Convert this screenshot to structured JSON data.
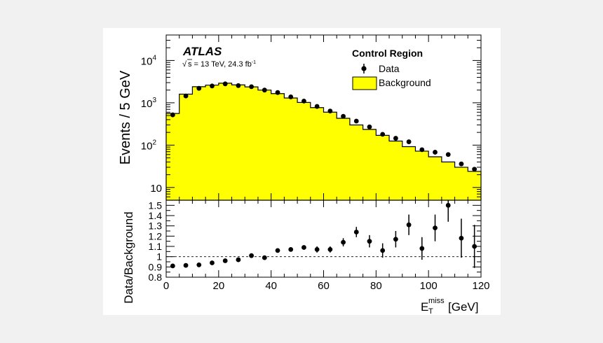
{
  "chart_data": [
    {
      "type": "histogram",
      "panel": "main",
      "ylabel": "Events / 5 GeV",
      "yscale": "log",
      "ylim": [
        5,
        40000
      ],
      "xlim": [
        0,
        120
      ],
      "bin_width": 5,
      "y_ticks": [
        {
          "value": 10,
          "base": "10",
          "exp": ""
        },
        {
          "value": 100,
          "base": "10",
          "exp": "2"
        },
        {
          "value": 1000,
          "base": "10",
          "exp": "3"
        },
        {
          "value": 10000,
          "base": "10",
          "exp": "4"
        }
      ],
      "experiment": "ATLAS",
      "energy_label": "s = 13 TeV, 24.3 fb",
      "energy_label_exp": "-1",
      "legend_title": "Control Region",
      "legend_position": "top-right",
      "series": [
        {
          "name": "Data",
          "style": "points",
          "x": [
            2.5,
            7.5,
            12.5,
            17.5,
            22.5,
            27.5,
            32.5,
            37.5,
            42.5,
            47.5,
            52.5,
            57.5,
            62.5,
            67.5,
            72.5,
            77.5,
            82.5,
            87.5,
            92.5,
            97.5,
            102.5,
            107.5,
            112.5,
            117.5
          ],
          "values": [
            520,
            1450,
            2200,
            2500,
            2800,
            2550,
            2400,
            2000,
            1750,
            1380,
            1100,
            820,
            640,
            480,
            370,
            270,
            180,
            145,
            120,
            78,
            68,
            60,
            36,
            27
          ]
        },
        {
          "name": "Background",
          "style": "filled-step",
          "color": "#ffff00",
          "values": [
            560,
            1600,
            2400,
            2620,
            2900,
            2650,
            2380,
            2000,
            1650,
            1300,
            1020,
            770,
            600,
            430,
            300,
            235,
            170,
            125,
            92,
            72,
            53,
            40,
            30,
            24
          ]
        }
      ]
    },
    {
      "type": "scatter",
      "panel": "ratio",
      "xlabel": "E",
      "xlabel_sup": "miss",
      "xlabel_sub": "T",
      "xlabel_unit": "[GeV]",
      "ylabel": "Data/Background",
      "ylim": [
        0.8,
        1.55
      ],
      "xlim": [
        0,
        120
      ],
      "y_ticks": [
        "0.8",
        "0.9",
        "1",
        "1.1",
        "1.2",
        "1.3",
        "1.4",
        "1.5"
      ],
      "x_ticks": [
        "0",
        "20",
        "40",
        "60",
        "80",
        "100",
        "120"
      ],
      "reference_line": 1,
      "series": [
        {
          "name": "Data/Background",
          "x": [
            2.5,
            7.5,
            12.5,
            17.5,
            22.5,
            27.5,
            32.5,
            37.5,
            42.5,
            47.5,
            52.5,
            57.5,
            62.5,
            67.5,
            72.5,
            77.5,
            82.5,
            87.5,
            92.5,
            97.5,
            102.5,
            107.5,
            112.5,
            117.5
          ],
          "values": [
            0.91,
            0.915,
            0.92,
            0.94,
            0.96,
            0.97,
            1.01,
            0.99,
            1.06,
            1.07,
            1.09,
            1.07,
            1.07,
            1.14,
            1.24,
            1.15,
            1.06,
            1.17,
            1.31,
            1.08,
            1.28,
            1.5,
            1.18,
            1.1
          ],
          "errors": [
            0.02,
            0.01,
            0.01,
            0.01,
            0.01,
            0.01,
            0.01,
            0.01,
            0.02,
            0.02,
            0.02,
            0.03,
            0.03,
            0.04,
            0.05,
            0.06,
            0.07,
            0.08,
            0.1,
            0.11,
            0.13,
            0.16,
            0.19,
            0.21
          ]
        }
      ]
    }
  ]
}
